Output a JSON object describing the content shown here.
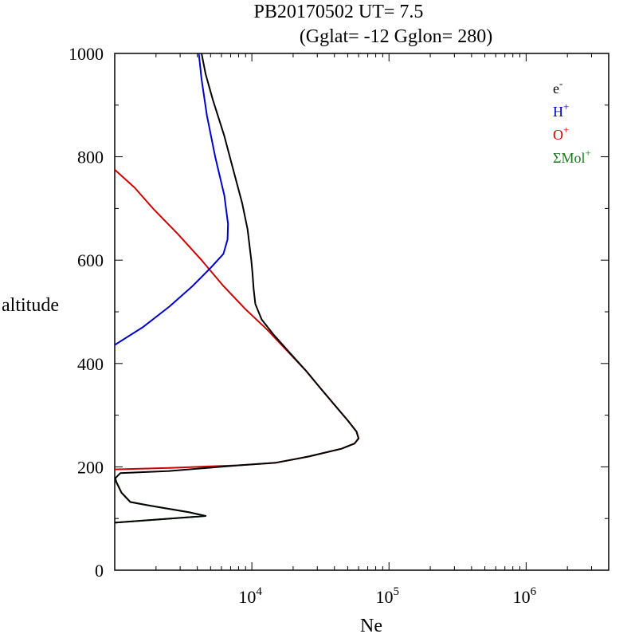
{
  "chart_data": {
    "type": "line",
    "title": "PB20170502   UT=  7.5",
    "subtitle": "(Gglat= -12   Gglon=  280)",
    "xlabel": "Ne",
    "ylabel": "altitude",
    "xscale": "log",
    "xlim": [
      1000,
      4000000
    ],
    "ylim": [
      0,
      1000
    ],
    "y_ticks": [
      "0",
      "200",
      "400",
      "600",
      "800",
      "1000"
    ],
    "x_tick_labels": [
      {
        "base": "10",
        "exp": "4",
        "value": 10000
      },
      {
        "base": "10",
        "exp": "5",
        "value": 100000
      },
      {
        "base": "10",
        "exp": "6",
        "value": 1000000
      }
    ],
    "legend_position": "top-right",
    "series": [
      {
        "name": "e-",
        "label": {
          "base": "e",
          "sup": "-"
        },
        "color": "#000000",
        "points": [
          [
            1000,
            92
          ],
          [
            4600,
            105
          ],
          [
            3500,
            112
          ],
          [
            1800,
            125
          ],
          [
            1300,
            132
          ],
          [
            1120,
            150
          ],
          [
            1030,
            170
          ],
          [
            1010,
            178
          ],
          [
            1100,
            188
          ],
          [
            2500,
            192
          ],
          [
            8000,
            203
          ],
          [
            15000,
            208
          ],
          [
            26000,
            220
          ],
          [
            45000,
            235
          ],
          [
            56000,
            245
          ],
          [
            60000,
            255
          ],
          [
            58000,
            268
          ],
          [
            50000,
            290
          ],
          [
            40000,
            320
          ],
          [
            31000,
            355
          ],
          [
            25000,
            385
          ],
          [
            19000,
            420
          ],
          [
            14500,
            455
          ],
          [
            11800,
            485
          ],
          [
            10600,
            515
          ],
          [
            10300,
            545
          ],
          [
            10100,
            575
          ],
          [
            9900,
            600
          ],
          [
            9300,
            660
          ],
          [
            8500,
            710
          ],
          [
            7400,
            770
          ],
          [
            6300,
            840
          ],
          [
            5200,
            910
          ],
          [
            4600,
            960
          ],
          [
            4300,
            1000
          ]
        ]
      },
      {
        "name": "H+",
        "label": {
          "base": "H",
          "sup": "+"
        },
        "color": "#0000cc",
        "points": [
          [
            1000,
            436
          ],
          [
            1600,
            470
          ],
          [
            2500,
            510
          ],
          [
            3700,
            550
          ],
          [
            5000,
            585
          ],
          [
            6200,
            612
          ],
          [
            6650,
            640
          ],
          [
            6700,
            670
          ],
          [
            6300,
            725
          ],
          [
            5400,
            800
          ],
          [
            4700,
            880
          ],
          [
            4300,
            950
          ],
          [
            4100,
            1000
          ]
        ]
      },
      {
        "name": "O+",
        "label": {
          "base": "O",
          "sup": "+"
        },
        "color": "#cc0000",
        "points": [
          [
            1000,
            195
          ],
          [
            2500,
            198
          ],
          [
            8000,
            203
          ],
          [
            15000,
            208
          ],
          [
            26000,
            220
          ],
          [
            45000,
            235
          ],
          [
            56000,
            245
          ],
          [
            60000,
            255
          ],
          [
            58000,
            268
          ],
          [
            50000,
            290
          ],
          [
            40000,
            320
          ],
          [
            31000,
            355
          ],
          [
            25000,
            385
          ],
          [
            18000,
            425
          ],
          [
            13000,
            465
          ],
          [
            9000,
            505
          ],
          [
            6200,
            550
          ],
          [
            4300,
            600
          ],
          [
            2900,
            650
          ],
          [
            1900,
            700
          ],
          [
            1400,
            740
          ],
          [
            1000,
            775
          ]
        ]
      },
      {
        "name": "ΣMol+",
        "label": {
          "base": "ΣMol",
          "sup": "+"
        },
        "color": "#1a7a1a",
        "points": [
          [
            1000,
            92
          ],
          [
            4600,
            105
          ],
          [
            3500,
            112
          ],
          [
            1800,
            125
          ],
          [
            1300,
            132
          ],
          [
            1120,
            150
          ],
          [
            1030,
            170
          ],
          [
            1000,
            178
          ]
        ]
      }
    ]
  }
}
